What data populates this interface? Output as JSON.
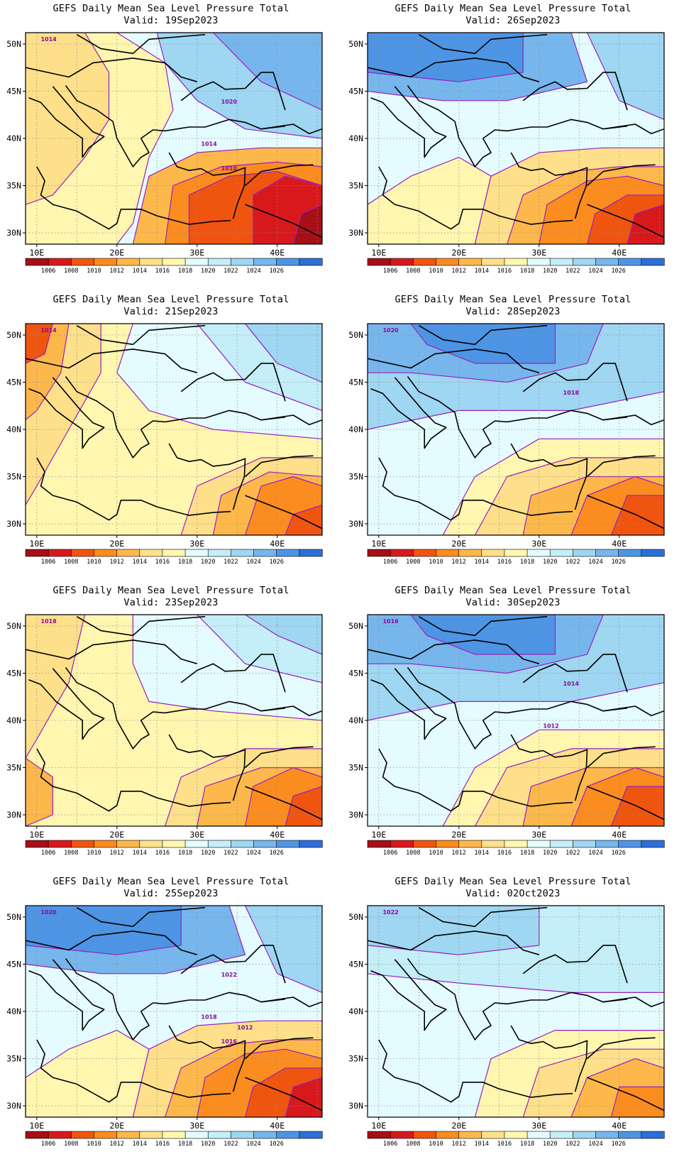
{
  "panels": [
    {
      "title": "GEFS Daily Mean Sea Level Pressure Total",
      "valid": "Valid: 19Sep2023",
      "contour_labels": [
        "1014",
        "1020",
        "1014",
        "1010"
      ],
      "pattern": "low-se"
    },
    {
      "title": "GEFS Daily Mean Sea Level Pressure Total",
      "valid": "Valid: 26Sep2023",
      "contour_labels": [],
      "pattern": "high-nw"
    },
    {
      "title": "GEFS Daily Mean Sea Level Pressure Total",
      "valid": "Valid: 21Sep2023",
      "contour_labels": [
        "1014"
      ],
      "pattern": "low-west"
    },
    {
      "title": "GEFS Daily Mean Sea Level Pressure Total",
      "valid": "Valid: 28Sep2023",
      "contour_labels": [
        "1020",
        "1018"
      ],
      "pattern": "high-n"
    },
    {
      "title": "GEFS Daily Mean Sea Level Pressure Total",
      "valid": "Valid: 23Sep2023",
      "contour_labels": [
        "1018"
      ],
      "pattern": "warm"
    },
    {
      "title": "GEFS Daily Mean Sea Level Pressure Total",
      "valid": "Valid: 30Sep2023",
      "contour_labels": [
        "1016",
        "1014",
        "1012"
      ],
      "pattern": "high-n"
    },
    {
      "title": "GEFS Daily Mean Sea Level Pressure Total",
      "valid": "Valid: 25Sep2023",
      "contour_labels": [
        "1020",
        "1022",
        "1018",
        "1016",
        "1012"
      ],
      "pattern": "high-nw"
    },
    {
      "title": "GEFS Daily Mean Sea Level Pressure Total",
      "valid": "Valid: 02Oct2023",
      "contour_labels": [
        "1022"
      ],
      "pattern": "mild"
    }
  ],
  "axes": {
    "lon_ticks": [
      "10E",
      "20E",
      "30E",
      "40E"
    ],
    "lat_ticks": [
      "50N",
      "45N",
      "40N",
      "35N",
      "30N"
    ]
  },
  "colorbar": {
    "labels": [
      "1006",
      "1008",
      "1010",
      "1012",
      "1014",
      "1016",
      "1018",
      "1020",
      "1022",
      "1024",
      "1026"
    ],
    "colors": [
      "#a50f15",
      "#d7191c",
      "#f0550f",
      "#fb8c1f",
      "#fdb84b",
      "#fee08b",
      "#fff6b0",
      "#e4fbff",
      "#c4eef8",
      "#9fd6f2",
      "#76b6ec",
      "#4d95e4",
      "#2c6fd7"
    ]
  }
}
